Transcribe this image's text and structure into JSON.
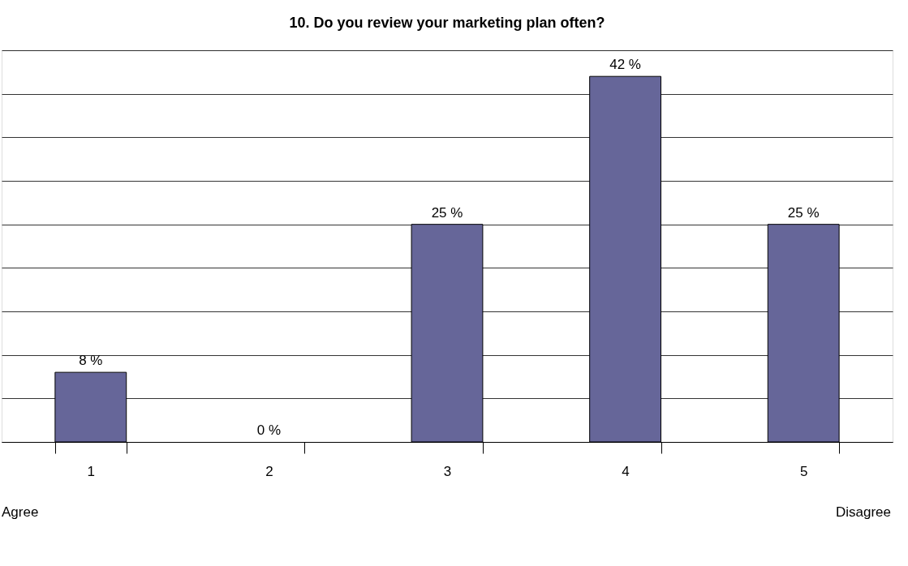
{
  "chart_data": {
    "type": "bar",
    "title": "10. Do you review your marketing plan often?",
    "categories": [
      "1",
      "2",
      "3",
      "4",
      "5"
    ],
    "values": [
      8,
      0,
      25,
      42,
      25
    ],
    "value_labels": [
      "8 %",
      "0 %",
      "25 %",
      "42 %",
      "25 %"
    ],
    "color": "#666699",
    "ylim": [
      0,
      45
    ],
    "yticks": [
      {
        "value": 0,
        "label": null
      },
      {
        "value": 5,
        "label": null
      },
      {
        "value": 10,
        "label": null
      },
      {
        "value": 15,
        "label": null
      },
      {
        "value": 20,
        "label": null
      },
      {
        "value": 25,
        "label": null
      },
      {
        "value": 30,
        "label": null
      },
      {
        "value": 35,
        "label": null
      },
      {
        "value": 40,
        "label": null
      },
      {
        "value": 45,
        "label": null
      }
    ],
    "grid": "y",
    "tick_labels": "x",
    "annotations": [
      "Agree",
      "Disagree"
    ]
  }
}
